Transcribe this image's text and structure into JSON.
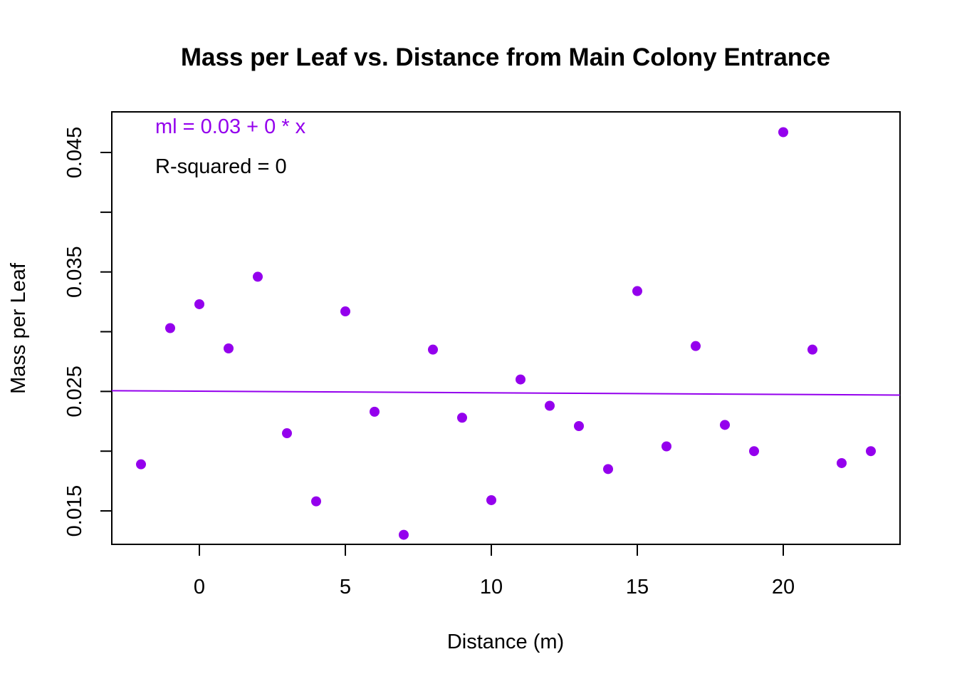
{
  "chart_data": {
    "type": "scatter",
    "title": "Mass per Leaf vs. Distance from Main Colony Entrance",
    "xlabel": "Distance (m)",
    "ylabel": "Mass per Leaf",
    "xlim": [
      -3,
      24
    ],
    "ylim": [
      0.0122,
      0.0484
    ],
    "x_ticks": [
      0,
      5,
      10,
      15,
      20
    ],
    "y_ticks": [
      0.015,
      0.02,
      0.025,
      0.03,
      0.035,
      0.04,
      0.045
    ],
    "y_tick_labels": [
      "0.015",
      "",
      "0.025",
      "",
      "0.035",
      "",
      "0.045"
    ],
    "grid": false,
    "point_color": "#9400ED",
    "line_color": "#9400ED",
    "series": [
      {
        "x": [
          -2,
          -1,
          0,
          1,
          2,
          3,
          4,
          5,
          6,
          7,
          8,
          9,
          10,
          11,
          12,
          13,
          14,
          15,
          16,
          17,
          18,
          19,
          20,
          21,
          22,
          23
        ],
        "y": [
          0.0189,
          0.0303,
          0.0323,
          0.0286,
          0.0346,
          0.0215,
          0.0158,
          0.0317,
          0.0233,
          0.013,
          0.0285,
          0.0228,
          0.0159,
          0.026,
          0.0238,
          0.0221,
          0.0185,
          0.0334,
          0.0204,
          0.0288,
          0.0222,
          0.02,
          0.0467,
          0.0285,
          0.019,
          0.02
        ]
      }
    ],
    "fit_line": {
      "intercept": 0.02502,
      "slope": -1.35e-05
    },
    "annotations": [
      {
        "text": "ml = 0.03 + 0 * x",
        "color": "#9400ED"
      },
      {
        "text": "R-squared = 0",
        "color": "#000000"
      }
    ]
  }
}
